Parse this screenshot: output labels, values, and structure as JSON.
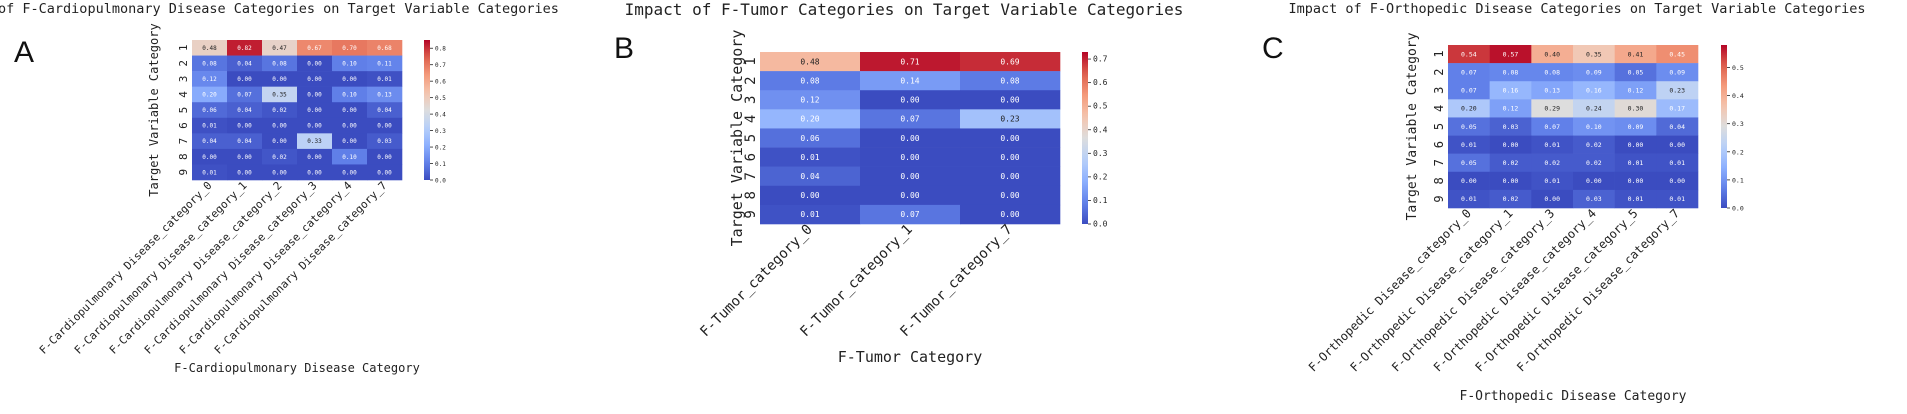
{
  "chart_data": [
    {
      "type": "heatmap",
      "panel_label": "A",
      "title": "Impact of F-Cardiopulmonary Disease Categories on Target Variable Categories",
      "xlabel": "F-Cardiopulmonary Disease Category",
      "ylabel": "Target Variable Category",
      "x_categories": [
        "F-Cardiopulmonary Disease_category_0",
        "F-Cardiopulmonary Disease_category_1",
        "F-Cardiopulmonary Disease_category_2",
        "F-Cardiopulmonary Disease_category_3",
        "F-Cardiopulmonary Disease_category_4",
        "F-Cardiopulmonary Disease_category_7"
      ],
      "y_categories": [
        "1",
        "2",
        "3",
        "4",
        "5",
        "6",
        "7",
        "8",
        "9"
      ],
      "values": [
        [
          0.48,
          0.82,
          0.47,
          0.67,
          0.7,
          0.68
        ],
        [
          0.08,
          0.04,
          0.08,
          0.0,
          0.1,
          0.11
        ],
        [
          0.12,
          0.0,
          0.0,
          0.0,
          0.0,
          0.01
        ],
        [
          0.2,
          0.07,
          0.35,
          0.0,
          0.1,
          0.13
        ],
        [
          0.06,
          0.04,
          0.02,
          0.0,
          0.0,
          0.04
        ],
        [
          0.01,
          0.0,
          0.0,
          0.0,
          0.0,
          0.0
        ],
        [
          0.04,
          0.04,
          0.0,
          0.33,
          0.0,
          0.03
        ],
        [
          0.0,
          0.0,
          0.02,
          0.0,
          0.1,
          0.0
        ],
        [
          0.01,
          0.0,
          0.0,
          0.0,
          0.0,
          0.0
        ]
      ],
      "vmin": 0,
      "vmax": 0.85,
      "colorbar_ticks": [
        "0.0",
        "0.1",
        "0.2",
        "0.3",
        "0.4",
        "0.5",
        "0.6",
        "0.7",
        "0.8"
      ],
      "colormap": "coolwarm"
    },
    {
      "type": "heatmap",
      "panel_label": "B",
      "title": "Impact of F-Tumor Categories on Target Variable Categories",
      "xlabel": "F-Tumor Category",
      "ylabel": "Target Variable Category",
      "x_categories": [
        "F-Tumor_category_0",
        "F-Tumor_category_1",
        "F-Tumor_category_7"
      ],
      "y_categories": [
        "1",
        "2",
        "3",
        "4",
        "5",
        "6",
        "7",
        "8",
        "9"
      ],
      "values": [
        [
          0.48,
          0.71,
          0.69
        ],
        [
          0.08,
          0.14,
          0.08
        ],
        [
          0.12,
          0.0,
          0.0
        ],
        [
          0.2,
          0.07,
          0.23
        ],
        [
          0.06,
          0.0,
          0.0
        ],
        [
          0.01,
          0.0,
          0.0
        ],
        [
          0.04,
          0.0,
          0.0
        ],
        [
          0.0,
          0.0,
          0.0
        ],
        [
          0.01,
          0.07,
          0.0
        ]
      ],
      "vmin": 0,
      "vmax": 0.73,
      "colorbar_ticks": [
        "0.0",
        "0.1",
        "0.2",
        "0.3",
        "0.4",
        "0.5",
        "0.6",
        "0.7"
      ],
      "colormap": "coolwarm"
    },
    {
      "type": "heatmap",
      "panel_label": "C",
      "title": "Impact of F-Orthopedic Disease Categories on Target Variable Categories",
      "xlabel": "F-Orthopedic Disease Category",
      "ylabel": "Target Variable Category",
      "x_categories": [
        "F-Orthopedic Disease_category_0",
        "F-Orthopedic Disease_category_1",
        "F-Orthopedic Disease_category_3",
        "F-Orthopedic Disease_category_4",
        "F-Orthopedic Disease_category_5",
        "F-Orthopedic Disease_category_7"
      ],
      "y_categories": [
        "1",
        "2",
        "3",
        "4",
        "5",
        "6",
        "7",
        "8",
        "9"
      ],
      "values": [
        [
          0.54,
          0.57,
          0.4,
          0.35,
          0.41,
          0.45
        ],
        [
          0.07,
          0.08,
          0.08,
          0.09,
          0.05,
          0.09
        ],
        [
          0.07,
          0.16,
          0.13,
          0.16,
          0.12,
          0.23
        ],
        [
          0.2,
          0.12,
          0.29,
          0.24,
          0.3,
          0.17
        ],
        [
          0.05,
          0.03,
          0.07,
          0.1,
          0.09,
          0.04
        ],
        [
          0.01,
          0.0,
          0.01,
          0.02,
          0.0,
          0.0
        ],
        [
          0.05,
          0.02,
          0.02,
          0.02,
          0.01,
          0.01
        ],
        [
          0.0,
          0.0,
          0.01,
          0.0,
          0.0,
          0.0
        ],
        [
          0.01,
          0.02,
          0.0,
          0.03,
          0.01,
          0.01
        ]
      ],
      "vmin": 0,
      "vmax": 0.58,
      "colorbar_ticks": [
        "0.0",
        "0.1",
        "0.2",
        "0.3",
        "0.4",
        "0.5"
      ],
      "colormap": "coolwarm"
    }
  ]
}
